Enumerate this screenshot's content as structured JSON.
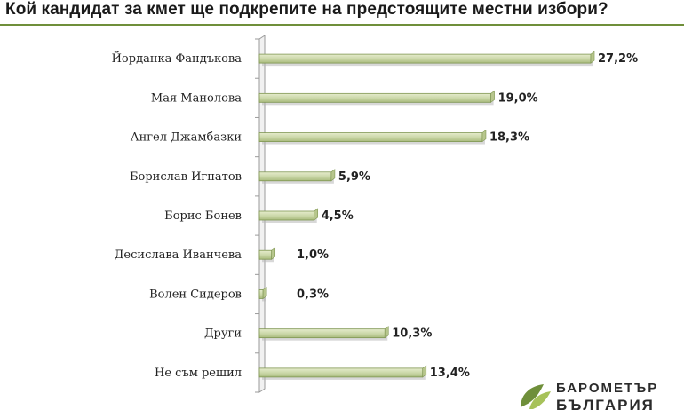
{
  "chart_data": {
    "type": "bar",
    "orientation": "horizontal",
    "title": "Кой кандидат за кмет ще подкрепите на предстоящите местни избори?",
    "categories": [
      "Йорданка Фандъкова",
      "Мая Манолова",
      "Ангел Джамбазки",
      "Борислав Игнатов",
      "Борис Бонев",
      "Десислава Иванчева",
      "Волен Сидеров",
      "Други",
      "Не съм решил"
    ],
    "values": [
      27.2,
      19.0,
      18.3,
      5.9,
      4.5,
      1.0,
      0.3,
      10.3,
      13.4
    ],
    "value_labels": [
      "27,2%",
      "19,0%",
      "18,3%",
      "5,9%",
      "4,5%",
      "1,0%",
      "0,3%",
      "10,3%",
      "13,4%"
    ],
    "xlim": [
      0,
      28
    ],
    "grid": false,
    "legend": "none",
    "colors": {
      "bar": "#c9d6a6",
      "bar_edge": "#7f9652",
      "bar_shadow": "#b8b8b8",
      "axis": "#9a9a9a",
      "title_rule": "#6f8f3a"
    }
  },
  "logo": {
    "line1": "БАРОМЕТЪР",
    "line2": "БЪЛГАРИЯ",
    "colors": {
      "leaf_dark": "#6f8f3a",
      "leaf_light": "#a7c25a"
    }
  }
}
